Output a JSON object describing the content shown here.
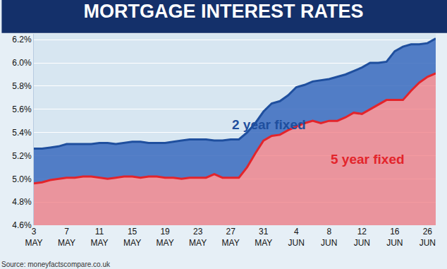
{
  "chart_data": {
    "type": "area",
    "title": "MORTGAGE INTEREST RATES",
    "source": "Source: moneyfactscompare.co.uk",
    "categories": [
      "3 MAY",
      null,
      null,
      null,
      "7 MAY",
      null,
      null,
      null,
      "11 MAY",
      null,
      null,
      null,
      "15 MAY",
      null,
      null,
      null,
      "19 MAY",
      null,
      null,
      null,
      "23 MAY",
      null,
      null,
      null,
      "27 MAY",
      null,
      null,
      null,
      "31 MAY",
      null,
      null,
      null,
      "4 JUN",
      null,
      null,
      null,
      "8 JUN",
      null,
      null,
      null,
      "12 JUN",
      null,
      null,
      null,
      "16 JUN",
      null,
      null,
      null,
      "26 JUN",
      null
    ],
    "series": [
      {
        "name": "5 year fixed",
        "color": "#e3242b",
        "values": [
          4.96,
          4.97,
          4.99,
          5.0,
          5.01,
          5.01,
          5.02,
          5.02,
          5.01,
          5.0,
          5.01,
          5.02,
          5.02,
          5.01,
          5.02,
          5.02,
          5.01,
          5.01,
          5.0,
          5.01,
          5.01,
          5.01,
          5.04,
          5.01,
          5.01,
          5.01,
          5.1,
          5.22,
          5.33,
          5.37,
          5.38,
          5.42,
          5.45,
          5.48,
          5.5,
          5.48,
          5.5,
          5.5,
          5.53,
          5.57,
          5.56,
          5.6,
          5.64,
          5.68,
          5.68,
          5.68,
          5.76,
          5.83,
          5.88,
          5.91
        ]
      },
      {
        "name": "2 year fixed",
        "color": "#1f4f9e",
        "values": [
          5.26,
          5.26,
          5.27,
          5.28,
          5.3,
          5.3,
          5.3,
          5.3,
          5.31,
          5.31,
          5.3,
          5.31,
          5.32,
          5.32,
          5.31,
          5.31,
          5.31,
          5.32,
          5.33,
          5.34,
          5.34,
          5.34,
          5.33,
          5.33,
          5.34,
          5.34,
          5.4,
          5.48,
          5.58,
          5.65,
          5.67,
          5.72,
          5.79,
          5.81,
          5.84,
          5.85,
          5.86,
          5.88,
          5.9,
          5.93,
          5.96,
          6.0,
          6.0,
          6.01,
          6.1,
          6.14,
          6.16,
          6.16,
          6.17,
          6.21
        ]
      }
    ],
    "ylim": [
      4.6,
      6.25
    ],
    "yticks": [
      {
        "value": 4.6,
        "label": "4.6%"
      },
      {
        "value": 4.8,
        "label": "4.8%"
      },
      {
        "value": 5.0,
        "label": "5.0%"
      },
      {
        "value": 5.2,
        "label": "5.2%"
      },
      {
        "value": 5.4,
        "label": "5.4%"
      },
      {
        "value": 5.6,
        "label": "5.6%"
      },
      {
        "value": 5.8,
        "label": "5.8%"
      },
      {
        "value": 6.0,
        "label": "6.0%"
      },
      {
        "value": 6.2,
        "label": "6.2%"
      }
    ],
    "grid": true
  }
}
